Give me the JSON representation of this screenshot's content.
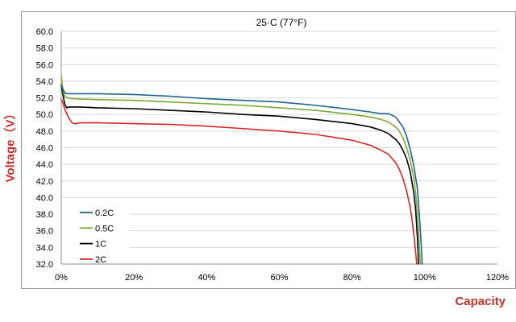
{
  "chart_data": {
    "type": "line",
    "title": "25·C (77°F)",
    "xlabel": "Capacity",
    "ylabel": "Voltage（V）",
    "xlim": [
      0,
      120
    ],
    "ylim": [
      32.0,
      60.0
    ],
    "xticks": [
      "0%",
      "20%",
      "40%",
      "60%",
      "80%",
      "100%",
      "120%"
    ],
    "yticks": [
      "32.0",
      "34.0",
      "36.0",
      "38.0",
      "40.0",
      "42.0",
      "44.0",
      "46.0",
      "48.0",
      "50.0",
      "52.0",
      "54.0",
      "56.0",
      "58.0",
      "60.0"
    ],
    "grid": "horizontal",
    "legend_position": "bottom-left",
    "series": [
      {
        "name": "0.2C",
        "color": "#1f6390",
        "x": [
          0.0,
          0.3,
          0.6,
          1.0,
          1.5,
          3.0,
          10.0,
          20.0,
          30.0,
          40.0,
          50.0,
          60.0,
          70.0,
          80.0,
          85.0,
          88.0,
          90.0,
          92.0,
          94.0,
          95.0,
          96.0,
          97.0,
          98.0,
          98.5,
          99.0,
          99.3
        ],
        "y": [
          53.4,
          53.2,
          52.9,
          52.6,
          52.5,
          52.5,
          52.5,
          52.4,
          52.2,
          51.9,
          51.7,
          51.5,
          51.1,
          50.6,
          50.3,
          50.1,
          50.1,
          49.7,
          48.5,
          47.4,
          45.8,
          43.8,
          41.0,
          38.0,
          34.5,
          32.0
        ]
      },
      {
        "name": "0.5C",
        "color": "#7aab3a",
        "x": [
          0.0,
          0.3,
          0.6,
          1.0,
          1.5,
          3.0,
          10.0,
          20.0,
          30.0,
          40.0,
          50.0,
          60.0,
          70.0,
          80.0,
          85.0,
          88.0,
          90.0,
          92.0,
          93.0,
          94.0,
          95.0,
          96.0,
          97.0,
          97.5,
          98.0,
          98.4,
          98.8
        ],
        "y": [
          54.6,
          53.5,
          52.6,
          52.2,
          52.0,
          51.9,
          51.8,
          51.7,
          51.5,
          51.3,
          51.1,
          50.8,
          50.5,
          50.0,
          49.7,
          49.4,
          49.1,
          48.5,
          48.0,
          47.2,
          46.0,
          44.5,
          42.3,
          40.5,
          38.0,
          35.0,
          32.0
        ]
      },
      {
        "name": "1C",
        "color": "#000000",
        "x": [
          0.0,
          0.3,
          0.7,
          1.0,
          1.5,
          2.0,
          3.0,
          5.0,
          10.0,
          20.0,
          30.0,
          40.0,
          50.0,
          60.0,
          70.0,
          80.0,
          85.0,
          88.0,
          90.0,
          92.0,
          93.0,
          94.0,
          95.0,
          96.0,
          97.0,
          97.5,
          98.0,
          98.3
        ],
        "y": [
          53.5,
          52.8,
          51.8,
          51.2,
          50.8,
          50.9,
          50.9,
          50.9,
          50.8,
          50.7,
          50.5,
          50.3,
          50.0,
          49.8,
          49.4,
          48.9,
          48.5,
          48.1,
          47.7,
          47.0,
          46.5,
          45.7,
          44.7,
          43.1,
          40.5,
          38.5,
          35.0,
          32.0
        ]
      },
      {
        "name": "2C",
        "color": "#d62728",
        "x": [
          0.0,
          0.3,
          0.7,
          1.0,
          2.0,
          3.0,
          3.5,
          4.0,
          5.0,
          7.0,
          10.0,
          20.0,
          30.0,
          40.0,
          50.0,
          60.0,
          70.0,
          80.0,
          85.0,
          88.0,
          90.0,
          92.0,
          93.0,
          94.0,
          95.0,
          96.0,
          96.5,
          97.0,
          97.4,
          97.8
        ],
        "y": [
          51.8,
          51.6,
          51.0,
          50.6,
          49.6,
          49.0,
          48.9,
          48.9,
          49.0,
          49.0,
          49.0,
          48.9,
          48.8,
          48.6,
          48.3,
          48.0,
          47.6,
          46.9,
          46.3,
          45.7,
          45.2,
          44.2,
          43.4,
          42.3,
          40.8,
          38.8,
          37.3,
          35.5,
          33.8,
          32.0
        ]
      }
    ]
  }
}
